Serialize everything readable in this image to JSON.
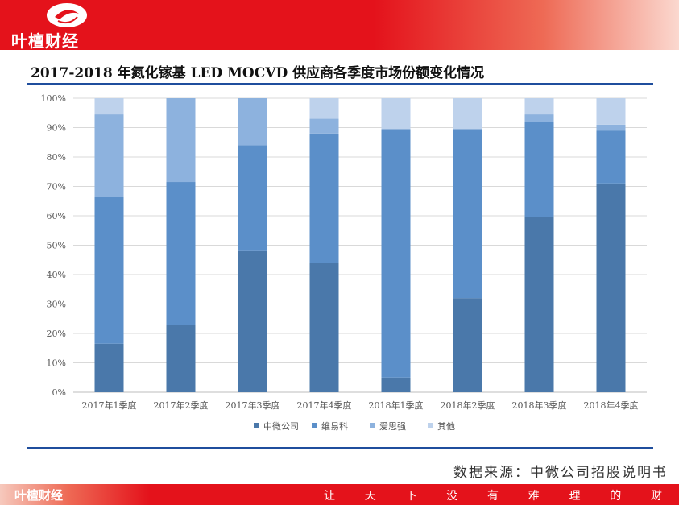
{
  "header": {
    "logo_text": "叶檀财经"
  },
  "title": "2017-2018 年氮化镓基 LED MOCVD 供应商各季度市场份额变化情况",
  "source": "数据来源：中微公司招股说明书",
  "footer": {
    "logo_text": "叶檀财经",
    "slogan": [
      "让",
      "天",
      "下",
      "没",
      "有",
      "难",
      "理",
      "的",
      "财"
    ]
  },
  "chart_data": {
    "type": "bar",
    "stacked": true,
    "categories": [
      "2017年1季度",
      "2017年2季度",
      "2017年3季度",
      "2017年4季度",
      "2018年1季度",
      "2018年2季度",
      "2018年3季度",
      "2018年4季度"
    ],
    "series": [
      {
        "name": "中微公司",
        "color": "#4a78aa",
        "values": [
          16.5,
          23,
          48,
          44,
          5,
          32,
          59.5,
          71
        ]
      },
      {
        "name": "维易科",
        "color": "#5b8fc9",
        "values": [
          50,
          48.5,
          36,
          44,
          84.5,
          57.5,
          32.5,
          18
        ]
      },
      {
        "name": "爱思强",
        "color": "#8db2de",
        "values": [
          28,
          28.5,
          16,
          5,
          0,
          0,
          2.5,
          2
        ]
      },
      {
        "name": "其他",
        "color": "#bed2ec",
        "values": [
          5.5,
          0,
          0,
          7,
          10.5,
          10.5,
          5.5,
          9
        ]
      }
    ],
    "ylim": [
      0,
      100
    ],
    "yticks": [
      "0%",
      "10%",
      "20%",
      "30%",
      "40%",
      "50%",
      "60%",
      "70%",
      "80%",
      "90%",
      "100%"
    ],
    "legend": "bottom",
    "grid": true
  }
}
